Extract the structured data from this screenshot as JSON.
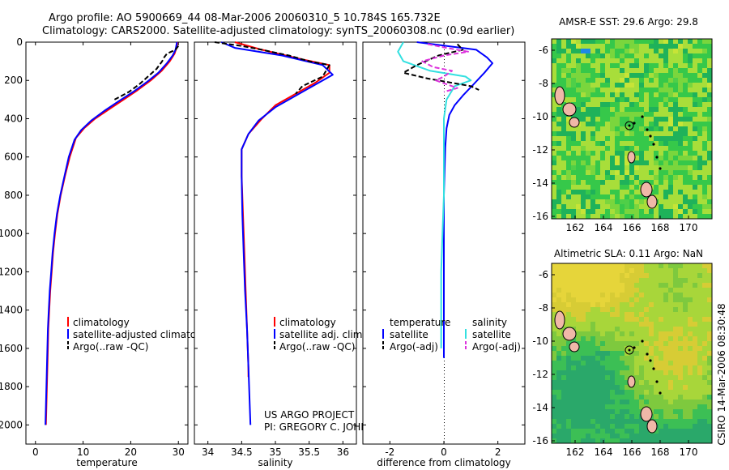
{
  "header": {
    "line1": "Argo profile: AO 5900669_44 08-Mar-2006 20060310_5 10.784S 165.732E",
    "line2": "Climatology: CARS2000. Satellite-adjusted climatology: synTS_20060308.nc (0.9d earlier)"
  },
  "footer": {
    "project": "US ARGO PROJECT",
    "pi": "PI: GREGORY C. JOHNSON",
    "stamp": "CSIRO 14-Mar-2006 08:30:48"
  },
  "chart_data": [
    {
      "id": "temperature",
      "type": "line",
      "xlabel": "temperature",
      "xlim": [
        -2,
        32
      ],
      "xticks": [
        0,
        10,
        20,
        30
      ],
      "ylim": [
        0,
        2100
      ],
      "yticks": [
        0,
        200,
        400,
        600,
        800,
        1000,
        1200,
        1400,
        1600,
        1800,
        2000
      ],
      "yreversed": true,
      "legend": [
        "climatology",
        "satellite-adjusted climatology",
        "Argo(..raw -QC)"
      ],
      "series": [
        {
          "name": "climatology",
          "color": "#ff0000",
          "points": [
            [
              29.8,
              0
            ],
            [
              29.6,
              30
            ],
            [
              29.2,
              60
            ],
            [
              28.2,
              100
            ],
            [
              26.5,
              150
            ],
            [
              24.2,
              200
            ],
            [
              21.5,
              250
            ],
            [
              18.5,
              300
            ],
            [
              15.5,
              350
            ],
            [
              12.5,
              400
            ],
            [
              10.2,
              450
            ],
            [
              8.5,
              500
            ],
            [
              7.2,
              600
            ],
            [
              6.2,
              700
            ],
            [
              5.3,
              800
            ],
            [
              4.6,
              900
            ],
            [
              4.1,
              1000
            ],
            [
              3.7,
              1100
            ],
            [
              3.4,
              1200
            ],
            [
              3.1,
              1300
            ],
            [
              2.9,
              1400
            ],
            [
              2.7,
              1500
            ],
            [
              2.6,
              1600
            ],
            [
              2.5,
              1700
            ],
            [
              2.4,
              1800
            ],
            [
              2.3,
              1900
            ],
            [
              2.2,
              2000
            ]
          ]
        },
        {
          "name": "satellite-adjusted climatology",
          "color": "#0000ff",
          "points": [
            [
              29.7,
              0
            ],
            [
              29.4,
              40
            ],
            [
              28.8,
              70
            ],
            [
              27.6,
              110
            ],
            [
              25.8,
              160
            ],
            [
              23.3,
              210
            ],
            [
              20.5,
              260
            ],
            [
              17.4,
              310
            ],
            [
              14.4,
              360
            ],
            [
              11.7,
              410
            ],
            [
              9.6,
              460
            ],
            [
              8.2,
              510
            ],
            [
              7.0,
              600
            ],
            [
              6.1,
              700
            ],
            [
              5.2,
              800
            ],
            [
              4.5,
              900
            ],
            [
              4.0,
              1000
            ],
            [
              3.6,
              1100
            ],
            [
              3.3,
              1200
            ],
            [
              3.0,
              1300
            ],
            [
              2.8,
              1400
            ],
            [
              2.6,
              1500
            ],
            [
              2.5,
              1600
            ],
            [
              2.4,
              1700
            ],
            [
              2.3,
              1800
            ],
            [
              2.2,
              1900
            ],
            [
              2.1,
              2000
            ]
          ]
        },
        {
          "name": "Argo(..raw -QC)",
          "color": "#000000",
          "dashed": true,
          "points": [
            [
              30.0,
              20
            ],
            [
              29.4,
              40
            ],
            [
              27.6,
              60
            ],
            [
              27.0,
              80
            ],
            [
              26.6,
              100
            ],
            [
              25.4,
              140
            ],
            [
              23.6,
              180
            ],
            [
              21.8,
              220
            ],
            [
              19.6,
              260
            ],
            [
              16.6,
              300
            ]
          ]
        }
      ]
    },
    {
      "id": "salinity",
      "type": "line",
      "xlabel": "salinity",
      "xlim": [
        33.8,
        36.2
      ],
      "xticks": [
        34,
        34.5,
        35,
        35.5,
        36
      ],
      "ylim": [
        0,
        2100
      ],
      "yreversed": true,
      "legend": [
        "climatology",
        "satellite adj. clim.",
        "Argo(..raw -QC)"
      ],
      "series": [
        {
          "name": "climatology",
          "color": "#ff0000",
          "points": [
            [
              34.4,
              0
            ],
            [
              34.8,
              40
            ],
            [
              35.4,
              90
            ],
            [
              35.8,
              120
            ],
            [
              35.8,
              160
            ],
            [
              35.6,
              210
            ],
            [
              35.3,
              270
            ],
            [
              35.0,
              330
            ],
            [
              34.8,
              400
            ],
            [
              34.6,
              480
            ],
            [
              34.5,
              560
            ],
            [
              34.5,
              700
            ],
            [
              34.52,
              900
            ],
            [
              34.54,
              1100
            ],
            [
              34.56,
              1300
            ],
            [
              34.58,
              1500
            ],
            [
              34.6,
              1700
            ],
            [
              34.6,
              1750
            ]
          ]
        },
        {
          "name": "satellite adj. clim.",
          "color": "#0000ff",
          "points": [
            [
              34.2,
              0
            ],
            [
              34.4,
              30
            ],
            [
              35.1,
              70
            ],
            [
              35.7,
              120
            ],
            [
              35.85,
              170
            ],
            [
              35.6,
              220
            ],
            [
              35.3,
              280
            ],
            [
              35.0,
              340
            ],
            [
              34.75,
              410
            ],
            [
              34.6,
              480
            ],
            [
              34.5,
              560
            ],
            [
              34.5,
              700
            ],
            [
              34.51,
              900
            ],
            [
              34.53,
              1100
            ],
            [
              34.55,
              1300
            ],
            [
              34.58,
              1500
            ],
            [
              34.6,
              1700
            ],
            [
              34.63,
              2000
            ]
          ]
        },
        {
          "name": "Argo(..raw -QC)",
          "color": "#000000",
          "dashed": true,
          "points": [
            [
              34.1,
              0
            ],
            [
              34.5,
              20
            ],
            [
              34.8,
              40
            ],
            [
              35.2,
              70
            ],
            [
              35.5,
              100
            ],
            [
              35.8,
              120
            ],
            [
              35.7,
              180
            ],
            [
              35.4,
              230
            ],
            [
              35.3,
              270
            ]
          ]
        }
      ]
    },
    {
      "id": "difference",
      "type": "line",
      "xlabel": "difference from climatology",
      "xlim": [
        -3,
        3
      ],
      "xticks": [
        -2,
        0,
        2
      ],
      "ylim": [
        0,
        2100
      ],
      "yreversed": true,
      "legend_temperature": {
        "heading": "temperature",
        "satellite": "satellite",
        "argo": "Argo(-adj)"
      },
      "legend_salinity": {
        "heading": "salinity",
        "satellite": "satellite",
        "argo": "Argo(-adj)"
      },
      "series": [
        {
          "name": "temperature satellite",
          "color": "#0000ff",
          "points": [
            [
              -1.0,
              0
            ],
            [
              1.2,
              40
            ],
            [
              1.6,
              80
            ],
            [
              1.8,
              110
            ],
            [
              1.5,
              160
            ],
            [
              1.1,
              220
            ],
            [
              0.7,
              280
            ],
            [
              0.4,
              330
            ],
            [
              0.2,
              380
            ],
            [
              0.1,
              450
            ],
            [
              0.05,
              550
            ],
            [
              0.0,
              800
            ],
            [
              0.0,
              1200
            ],
            [
              0.0,
              1600
            ],
            [
              0.0,
              1650
            ]
          ]
        },
        {
          "name": "salinity satellite",
          "color": "#33e0e0",
          "points": [
            [
              -1.5,
              0
            ],
            [
              -1.7,
              50
            ],
            [
              -1.5,
              100
            ],
            [
              -0.5,
              150
            ],
            [
              0.8,
              180
            ],
            [
              1.0,
              200
            ],
            [
              0.4,
              230
            ],
            [
              0.1,
              300
            ],
            [
              0.0,
              400
            ],
            [
              0.0,
              600
            ],
            [
              0.0,
              800
            ],
            [
              -0.05,
              1000
            ],
            [
              -0.1,
              1200
            ],
            [
              -0.1,
              1400
            ],
            [
              -0.1,
              1600
            ]
          ]
        },
        {
          "name": "temperature Argo(-adj)",
          "color": "#000000",
          "dashed": true,
          "points": [
            [
              0.5,
              10
            ],
            [
              0.7,
              40
            ],
            [
              -0.2,
              70
            ],
            [
              -1.0,
              120
            ],
            [
              -1.5,
              160
            ],
            [
              -0.6,
              190
            ],
            [
              0.2,
              210
            ],
            [
              1.0,
              230
            ],
            [
              1.3,
              250
            ]
          ]
        },
        {
          "name": "salinity Argo(-adj)",
          "color": "#dd33dd",
          "dashed": true,
          "points": [
            [
              -0.6,
              10
            ],
            [
              0.1,
              30
            ],
            [
              0.9,
              50
            ],
            [
              0.0,
              70
            ],
            [
              -0.8,
              100
            ],
            [
              -0.4,
              130
            ],
            [
              0.3,
              150
            ],
            [
              0.0,
              180
            ],
            [
              -0.3,
              200
            ],
            [
              0.5,
              240
            ],
            [
              0.0,
              260
            ]
          ]
        }
      ]
    }
  ],
  "maps": [
    {
      "id": "sst",
      "title": "AMSR-E SST: 29.6 Argo: 29.8",
      "xticks": [
        "162",
        "164",
        "166",
        "168",
        "170"
      ],
      "yticks": [
        "-6",
        "-8",
        "-10",
        "-12",
        "-14",
        "-16"
      ],
      "palette": [
        "#7ad63d",
        "#36c84a",
        "#a8de3a",
        "#1fb25a",
        "#c7e437",
        "#4fcf48"
      ]
    },
    {
      "id": "sla",
      "title": "Altimetric SLA: 0.11 Argo: NaN",
      "xticks": [
        "162",
        "164",
        "166",
        "168",
        "170"
      ],
      "yticks": [
        "-6",
        "-8",
        "-10",
        "-12",
        "-14",
        "-16"
      ],
      "palette": [
        "#e6d53a",
        "#d7cc35",
        "#a8d63a",
        "#7ec93e",
        "#3cbf55",
        "#2aa86a"
      ]
    }
  ]
}
